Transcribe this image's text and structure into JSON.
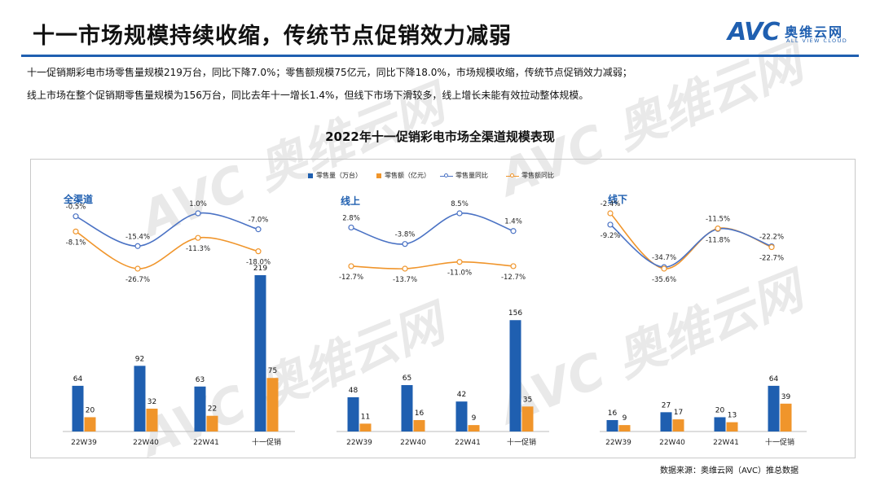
{
  "header": {
    "title": "十一市场规模持续收缩，传统节点促销效力减弱",
    "logo_main": "AVC",
    "logo_cn": "奥维云网",
    "logo_en": "ALL VIEW CLOUD"
  },
  "summary": {
    "line1": "十一促销期彩电市场零售量规模219万台，同比下降7.0%；零售额规模75亿元，同比下降18.0%，市场规模收缩，传统节点促销效力减弱；",
    "line2": "线上市场在整个促销期零售量规模为156万台，同比去年十一增长1.4%，但线下市场下滑较多，线上增长未能有效拉动整体规模。"
  },
  "watermark": {
    "main": "AVC 奥维云网",
    "sub": "ALL VIEW CLOUD"
  },
  "source": "数据来源：奥维云网（AVC）推总数据",
  "colors": {
    "volume": "#1f5fb0",
    "value": "#f0952b",
    "accent": "#1f5fb0"
  },
  "chart_data": {
    "type": "bar",
    "title": "2022年十一促销彩电市场全渠道规模表现",
    "legend": [
      {
        "label": "零售量（万台）",
        "kind": "bar",
        "color": "#1f5fb0"
      },
      {
        "label": "零售额（亿元）",
        "kind": "bar",
        "color": "#f0952b"
      },
      {
        "label": "零售量同比",
        "kind": "line",
        "color": "#4a72c4"
      },
      {
        "label": "零售额同比",
        "kind": "line",
        "color": "#f0952b"
      }
    ],
    "legend_position": "top-center",
    "categories": [
      "22W39",
      "22W40",
      "22W41",
      "十一促销"
    ],
    "panels": [
      {
        "name": "全渠道",
        "volume": [
          64,
          92,
          63,
          219
        ],
        "value": [
          20,
          32,
          22,
          75
        ],
        "volume_yoy": [
          "-0.5%",
          "-15.4%",
          "1.0%",
          "-7.0%"
        ],
        "value_yoy": [
          "-8.1%",
          "-26.7%",
          "-11.3%",
          "-18.0%"
        ]
      },
      {
        "name": "线上",
        "volume": [
          48,
          65,
          42,
          156
        ],
        "value": [
          11,
          16,
          9,
          35
        ],
        "volume_yoy": [
          "2.8%",
          "-3.8%",
          "8.5%",
          "1.4%"
        ],
        "value_yoy": [
          "-12.7%",
          "-13.7%",
          "-11.0%",
          "-12.7%"
        ]
      },
      {
        "name": "线下",
        "volume": [
          16,
          27,
          20,
          64
        ],
        "value": [
          9,
          17,
          13,
          39
        ],
        "volume_yoy": [
          "-9.2%",
          "-34.7%",
          "-11.8%",
          "-22.2%"
        ],
        "value_yoy": [
          "-2.4%",
          "-35.6%",
          "-11.5%",
          "-22.7%"
        ]
      }
    ]
  }
}
